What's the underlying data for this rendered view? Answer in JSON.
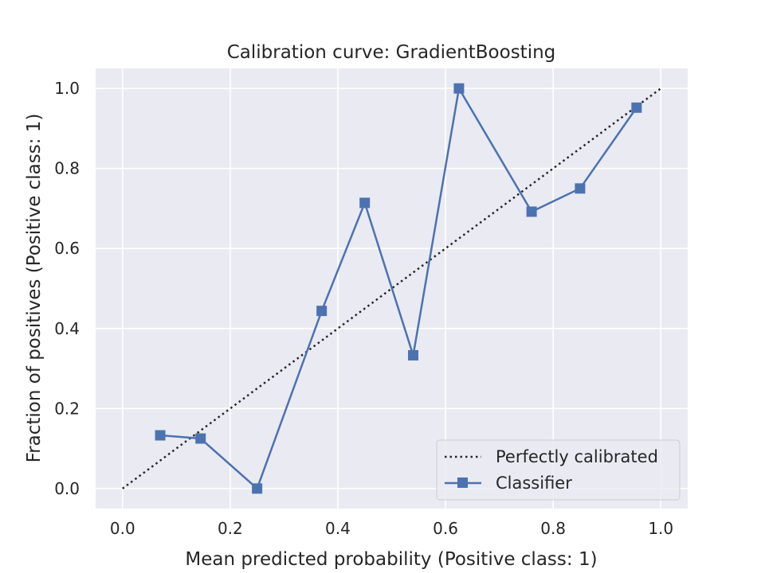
{
  "chart_data": {
    "type": "line",
    "title": "Calibration curve: GradientBoosting",
    "xlabel": "Mean predicted probability (Positive class: 1)",
    "ylabel": "Fraction of positives (Positive class: 1)",
    "xlim": [
      -0.05,
      1.05
    ],
    "ylim": [
      -0.05,
      1.05
    ],
    "x_ticks": [
      0.0,
      0.2,
      0.4,
      0.6,
      0.8,
      1.0
    ],
    "x_tick_labels": [
      "0.0",
      "0.2",
      "0.4",
      "0.6",
      "0.8",
      "1.0"
    ],
    "y_ticks": [
      0.0,
      0.2,
      0.4,
      0.6,
      0.8,
      1.0
    ],
    "y_tick_labels": [
      "0.0",
      "0.2",
      "0.4",
      "0.6",
      "0.8",
      "1.0"
    ],
    "grid": true,
    "legend_position": "lower-right",
    "background_color": "#eaeaf2",
    "series": [
      {
        "name": "Perfectly calibrated",
        "style": "dotted",
        "color": "#262626",
        "x": [
          0.0,
          1.0
        ],
        "y": [
          0.0,
          1.0
        ]
      },
      {
        "name": "Classifier",
        "style": "solid",
        "marker": "square",
        "color": "#4c72b0",
        "x": [
          0.07,
          0.145,
          0.25,
          0.37,
          0.45,
          0.54,
          0.625,
          0.76,
          0.85,
          0.955
        ],
        "y": [
          0.133,
          0.125,
          0.0,
          0.444,
          0.714,
          0.333,
          1.0,
          0.692,
          0.75,
          0.952
        ]
      }
    ]
  }
}
